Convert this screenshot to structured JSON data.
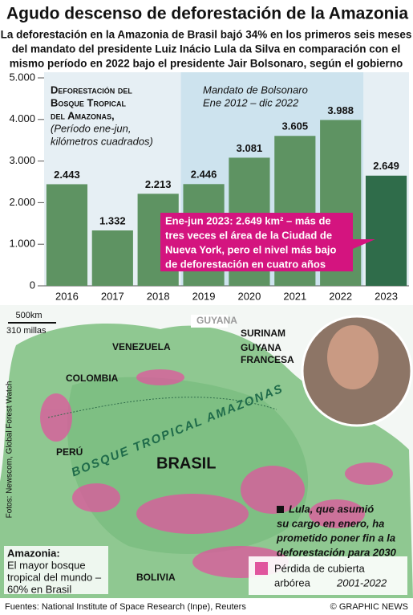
{
  "chart_data": {
    "type": "bar",
    "title": "Agudo descenso de deforestación de la Amazonia",
    "subtitle": [
      "La deforestación en la Amazonia de Brasil bajó 34% en los primeros seis meses",
      "del mandato del presidente Luiz Inácio Lula da Silva en comparación con el",
      "mismo período en 2022 bajo el presidente Jair Bolsonaro, según el gobierno"
    ],
    "chart_title": [
      "Deforestación del",
      "Bosque Tropical",
      "del Amazonas,"
    ],
    "chart_subtitle": [
      "(Período ene-jun,",
      "kilómetros cuadrados)"
    ],
    "categories": [
      "2016",
      "2017",
      "2018",
      "2019",
      "2020",
      "2021",
      "2022",
      "2023"
    ],
    "values": [
      2443,
      1332,
      2213,
      2446,
      3081,
      3605,
      3988,
      2649
    ],
    "value_labels": [
      "2.443",
      "1.332",
      "2.213",
      "2.446",
      "3.081",
      "3.605",
      "3.988",
      "2.649"
    ],
    "colors": [
      "#5e9362",
      "#5e9362",
      "#5e9362",
      "#5e9362",
      "#5e9362",
      "#5e9362",
      "#5e9362",
      "#2f6c4a"
    ],
    "ylim": [
      0,
      5000
    ],
    "yticks": [
      0,
      {
        "value": 1000,
        "label": "1.000"
      },
      {
        "value": 2000,
        "label": "2.000"
      },
      {
        "value": 3000,
        "label": "3.000"
      },
      {
        "value": 4000,
        "label": "4.000"
      },
      {
        "value": 5000,
        "label": "5.000"
      }
    ],
    "grid": false,
    "annotations": {
      "bolsonaro": [
        "Mandato de Bolsonaro",
        "Ene 2012 – dic 2022"
      ],
      "callout": [
        "Ene-jun 2023: 2.649 km² – más de",
        "tres veces el área de la Ciudad de",
        "Nueva York, pero el nivel más bajo",
        "de deforestación en cuatro años"
      ]
    }
  },
  "map": {
    "scale_km": "500km",
    "scale_mi": "310 millas",
    "labels": {
      "venezuela": "VENEZUELA",
      "guyana": "GUYANA",
      "surinam": "SURINAM",
      "guyana_francesa": [
        "GUYANA",
        "FRANCESA"
      ],
      "colombia": "COLOMBIA",
      "peru": "PERÚ",
      "brasil": "BRASIL",
      "bosque": "BOSQUE TROPICAL AMAZONAS",
      "bolivia": "BOLIVIA"
    },
    "amazonia": [
      "Amazonia:",
      "El mayor bosque",
      "tropical del mundo –",
      "60% en Brasil"
    ],
    "lula": [
      "Lula, que asumió",
      "su cargo en enero, ha",
      "prometido poner fin a la",
      "deforestación para 2030"
    ],
    "legend": [
      "Pérdida de cubierta",
      "arbórea",
      "2001-2022"
    ],
    "credit": "Fotos: Newscom, Global Forest Watch"
  },
  "footer": {
    "sources": "Fuentes: National Institute of Space Research (Inpe), Reuters",
    "copyright": "© GRAPHIC NEWS"
  }
}
